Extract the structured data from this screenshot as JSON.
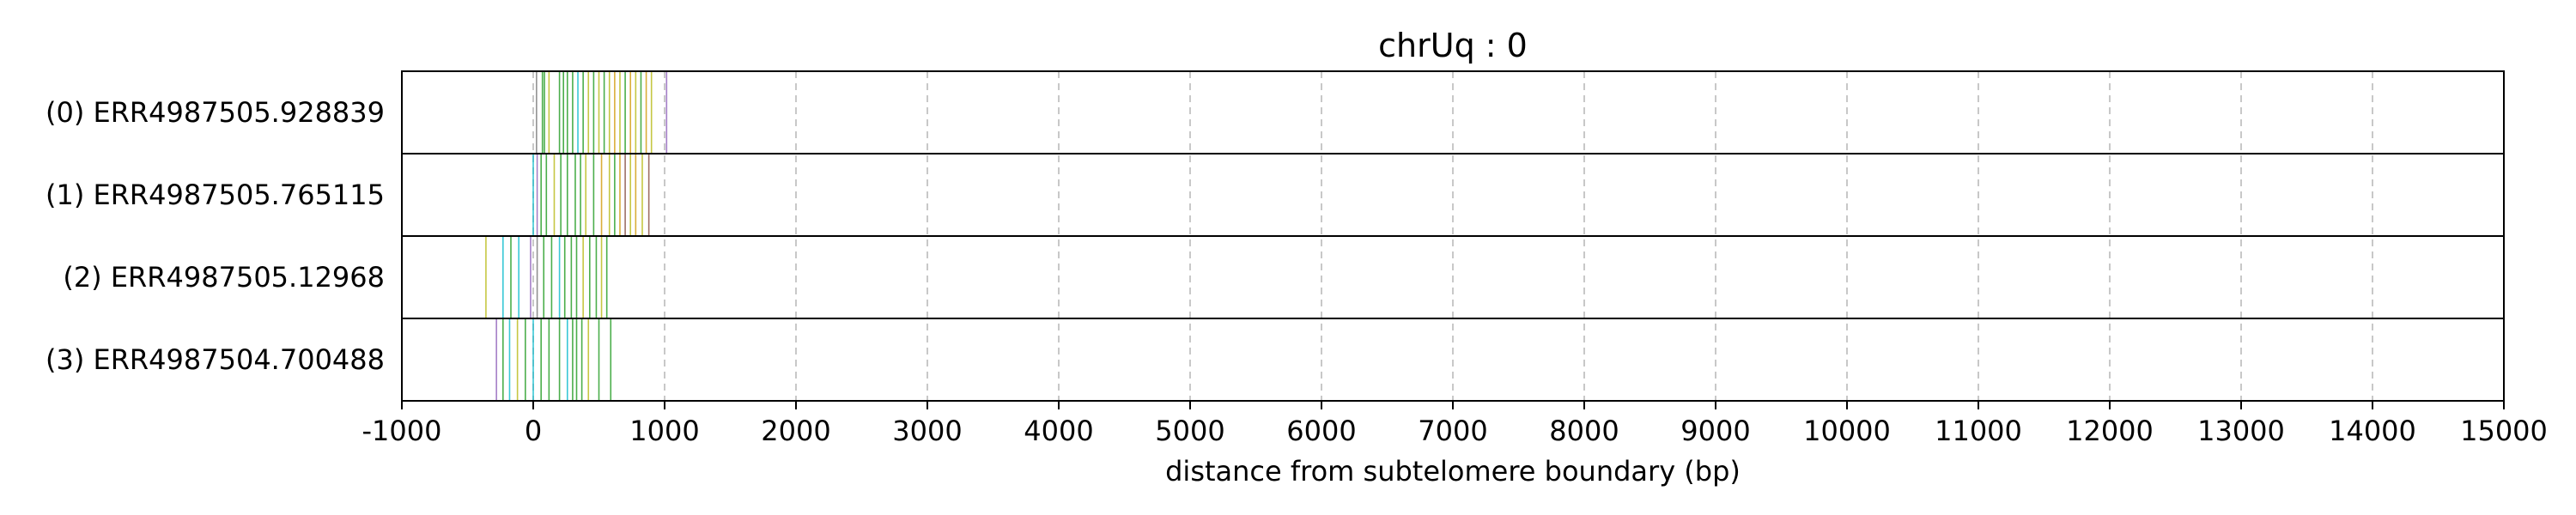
{
  "chart_data": {
    "type": "event-strip",
    "title": "chrUq : 0",
    "xlabel": "distance from subtelomere boundary (bp)",
    "xlim": [
      -1000,
      15000
    ],
    "xticks": [
      -1000,
      0,
      1000,
      2000,
      3000,
      4000,
      5000,
      6000,
      7000,
      8000,
      9000,
      10000,
      11000,
      12000,
      13000,
      14000,
      15000
    ],
    "grid": "vertical dashed",
    "rows": [
      {
        "label": "(0) ERR4987505.928839",
        "events": [
          {
            "x": 25,
            "c": "gray"
          },
          {
            "x": 70,
            "c": "green"
          },
          {
            "x": 85,
            "c": "green"
          },
          {
            "x": 120,
            "c": "olive"
          },
          {
            "x": 200,
            "c": "green"
          },
          {
            "x": 230,
            "c": "green"
          },
          {
            "x": 260,
            "c": "green"
          },
          {
            "x": 300,
            "c": "green"
          },
          {
            "x": 340,
            "c": "teal"
          },
          {
            "x": 380,
            "c": "green"
          },
          {
            "x": 420,
            "c": "olive"
          },
          {
            "x": 460,
            "c": "green"
          },
          {
            "x": 500,
            "c": "olive"
          },
          {
            "x": 540,
            "c": "green"
          },
          {
            "x": 580,
            "c": "olive"
          },
          {
            "x": 620,
            "c": "gold"
          },
          {
            "x": 660,
            "c": "olive"
          },
          {
            "x": 700,
            "c": "green"
          },
          {
            "x": 740,
            "c": "gold"
          },
          {
            "x": 780,
            "c": "olive"
          },
          {
            "x": 820,
            "c": "green"
          },
          {
            "x": 860,
            "c": "gold"
          },
          {
            "x": 900,
            "c": "olive"
          },
          {
            "x": 1015,
            "c": "purple"
          }
        ]
      },
      {
        "label": "(1) ERR4987505.765115",
        "events": [
          {
            "x": 0,
            "c": "teal"
          },
          {
            "x": 30,
            "c": "purple"
          },
          {
            "x": 60,
            "c": "green"
          },
          {
            "x": 100,
            "c": "green"
          },
          {
            "x": 160,
            "c": "olive"
          },
          {
            "x": 210,
            "c": "green"
          },
          {
            "x": 260,
            "c": "green"
          },
          {
            "x": 320,
            "c": "green"
          },
          {
            "x": 360,
            "c": "green"
          },
          {
            "x": 400,
            "c": "olive"
          },
          {
            "x": 460,
            "c": "green"
          },
          {
            "x": 520,
            "c": "gold"
          },
          {
            "x": 580,
            "c": "olive"
          },
          {
            "x": 620,
            "c": "green"
          },
          {
            "x": 660,
            "c": "gold"
          },
          {
            "x": 700,
            "c": "brown"
          },
          {
            "x": 740,
            "c": "olive"
          },
          {
            "x": 780,
            "c": "gold"
          },
          {
            "x": 830,
            "c": "olive"
          },
          {
            "x": 880,
            "c": "brown"
          }
        ]
      },
      {
        "label": "(2) ERR4987505.12968",
        "events": [
          {
            "x": -360,
            "c": "olive"
          },
          {
            "x": -230,
            "c": "teal"
          },
          {
            "x": -170,
            "c": "green"
          },
          {
            "x": -110,
            "c": "teal"
          },
          {
            "x": -20,
            "c": "purple"
          },
          {
            "x": 30,
            "c": "gray"
          },
          {
            "x": 80,
            "c": "green"
          },
          {
            "x": 140,
            "c": "green"
          },
          {
            "x": 200,
            "c": "teal"
          },
          {
            "x": 240,
            "c": "green"
          },
          {
            "x": 290,
            "c": "green"
          },
          {
            "x": 330,
            "c": "green"
          },
          {
            "x": 380,
            "c": "olive"
          },
          {
            "x": 430,
            "c": "green"
          },
          {
            "x": 480,
            "c": "green"
          },
          {
            "x": 520,
            "c": "olive"
          },
          {
            "x": 560,
            "c": "green"
          }
        ]
      },
      {
        "label": "(3) ERR4987504.700488",
        "events": [
          {
            "x": -280,
            "c": "purple"
          },
          {
            "x": -230,
            "c": "green"
          },
          {
            "x": -180,
            "c": "teal"
          },
          {
            "x": -120,
            "c": "olive"
          },
          {
            "x": -60,
            "c": "green"
          },
          {
            "x": 0,
            "c": "teal"
          },
          {
            "x": 60,
            "c": "green"
          },
          {
            "x": 120,
            "c": "green"
          },
          {
            "x": 200,
            "c": "green"
          },
          {
            "x": 260,
            "c": "teal"
          },
          {
            "x": 300,
            "c": "green"
          },
          {
            "x": 330,
            "c": "green"
          },
          {
            "x": 370,
            "c": "green"
          },
          {
            "x": 420,
            "c": "olive"
          },
          {
            "x": 500,
            "c": "green"
          },
          {
            "x": 590,
            "c": "green"
          }
        ]
      }
    ],
    "palette": {
      "green": "#2ca02c",
      "olive": "#bcbd22",
      "teal": "#17becf",
      "purple": "#9467bd",
      "gray": "#7f7f7f",
      "gold": "#d4a017",
      "brown": "#8c564b"
    }
  }
}
